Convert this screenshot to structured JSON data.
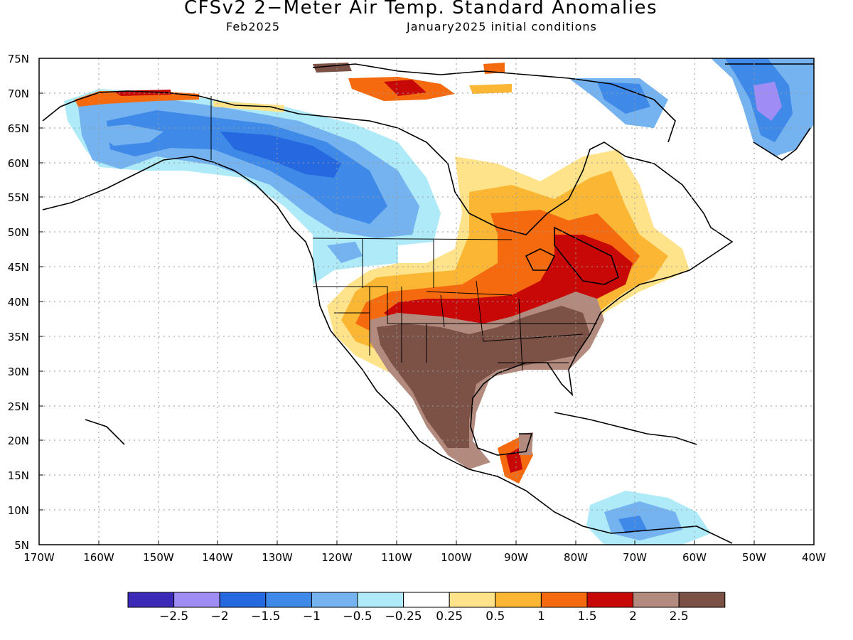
{
  "title": "CFSv2 2−Meter Air Temp. Standard Anomalies",
  "subtitle_left": "Feb2025",
  "subtitle_right": "January2025 initial conditions",
  "lat_labels": [
    "75N",
    "70N",
    "65N",
    "60N",
    "55N",
    "50N",
    "45N",
    "40N",
    "35N",
    "30N",
    "25N",
    "20N",
    "15N",
    "10N",
    "5N"
  ],
  "lon_labels": [
    "170W",
    "160W",
    "150W",
    "140W",
    "130W",
    "120W",
    "110W",
    "100W",
    "90W",
    "80W",
    "70W",
    "60W",
    "50W",
    "40W"
  ],
  "colorbar": {
    "colors": [
      "#3b2ab8",
      "#a08cf5",
      "#2568e0",
      "#3f8ae8",
      "#74b2f0",
      "#aeeaf8",
      "#ffffff",
      "#ffe38a",
      "#fbb733",
      "#f56a0e",
      "#c80707",
      "#b38a7e",
      "#7c5146"
    ],
    "labels": [
      "−2.5",
      "−2",
      "−1.5",
      "−1",
      "−0.5",
      "−0.25",
      "0.25",
      "0.5",
      "1",
      "1.5",
      "2",
      "2.5"
    ]
  }
}
